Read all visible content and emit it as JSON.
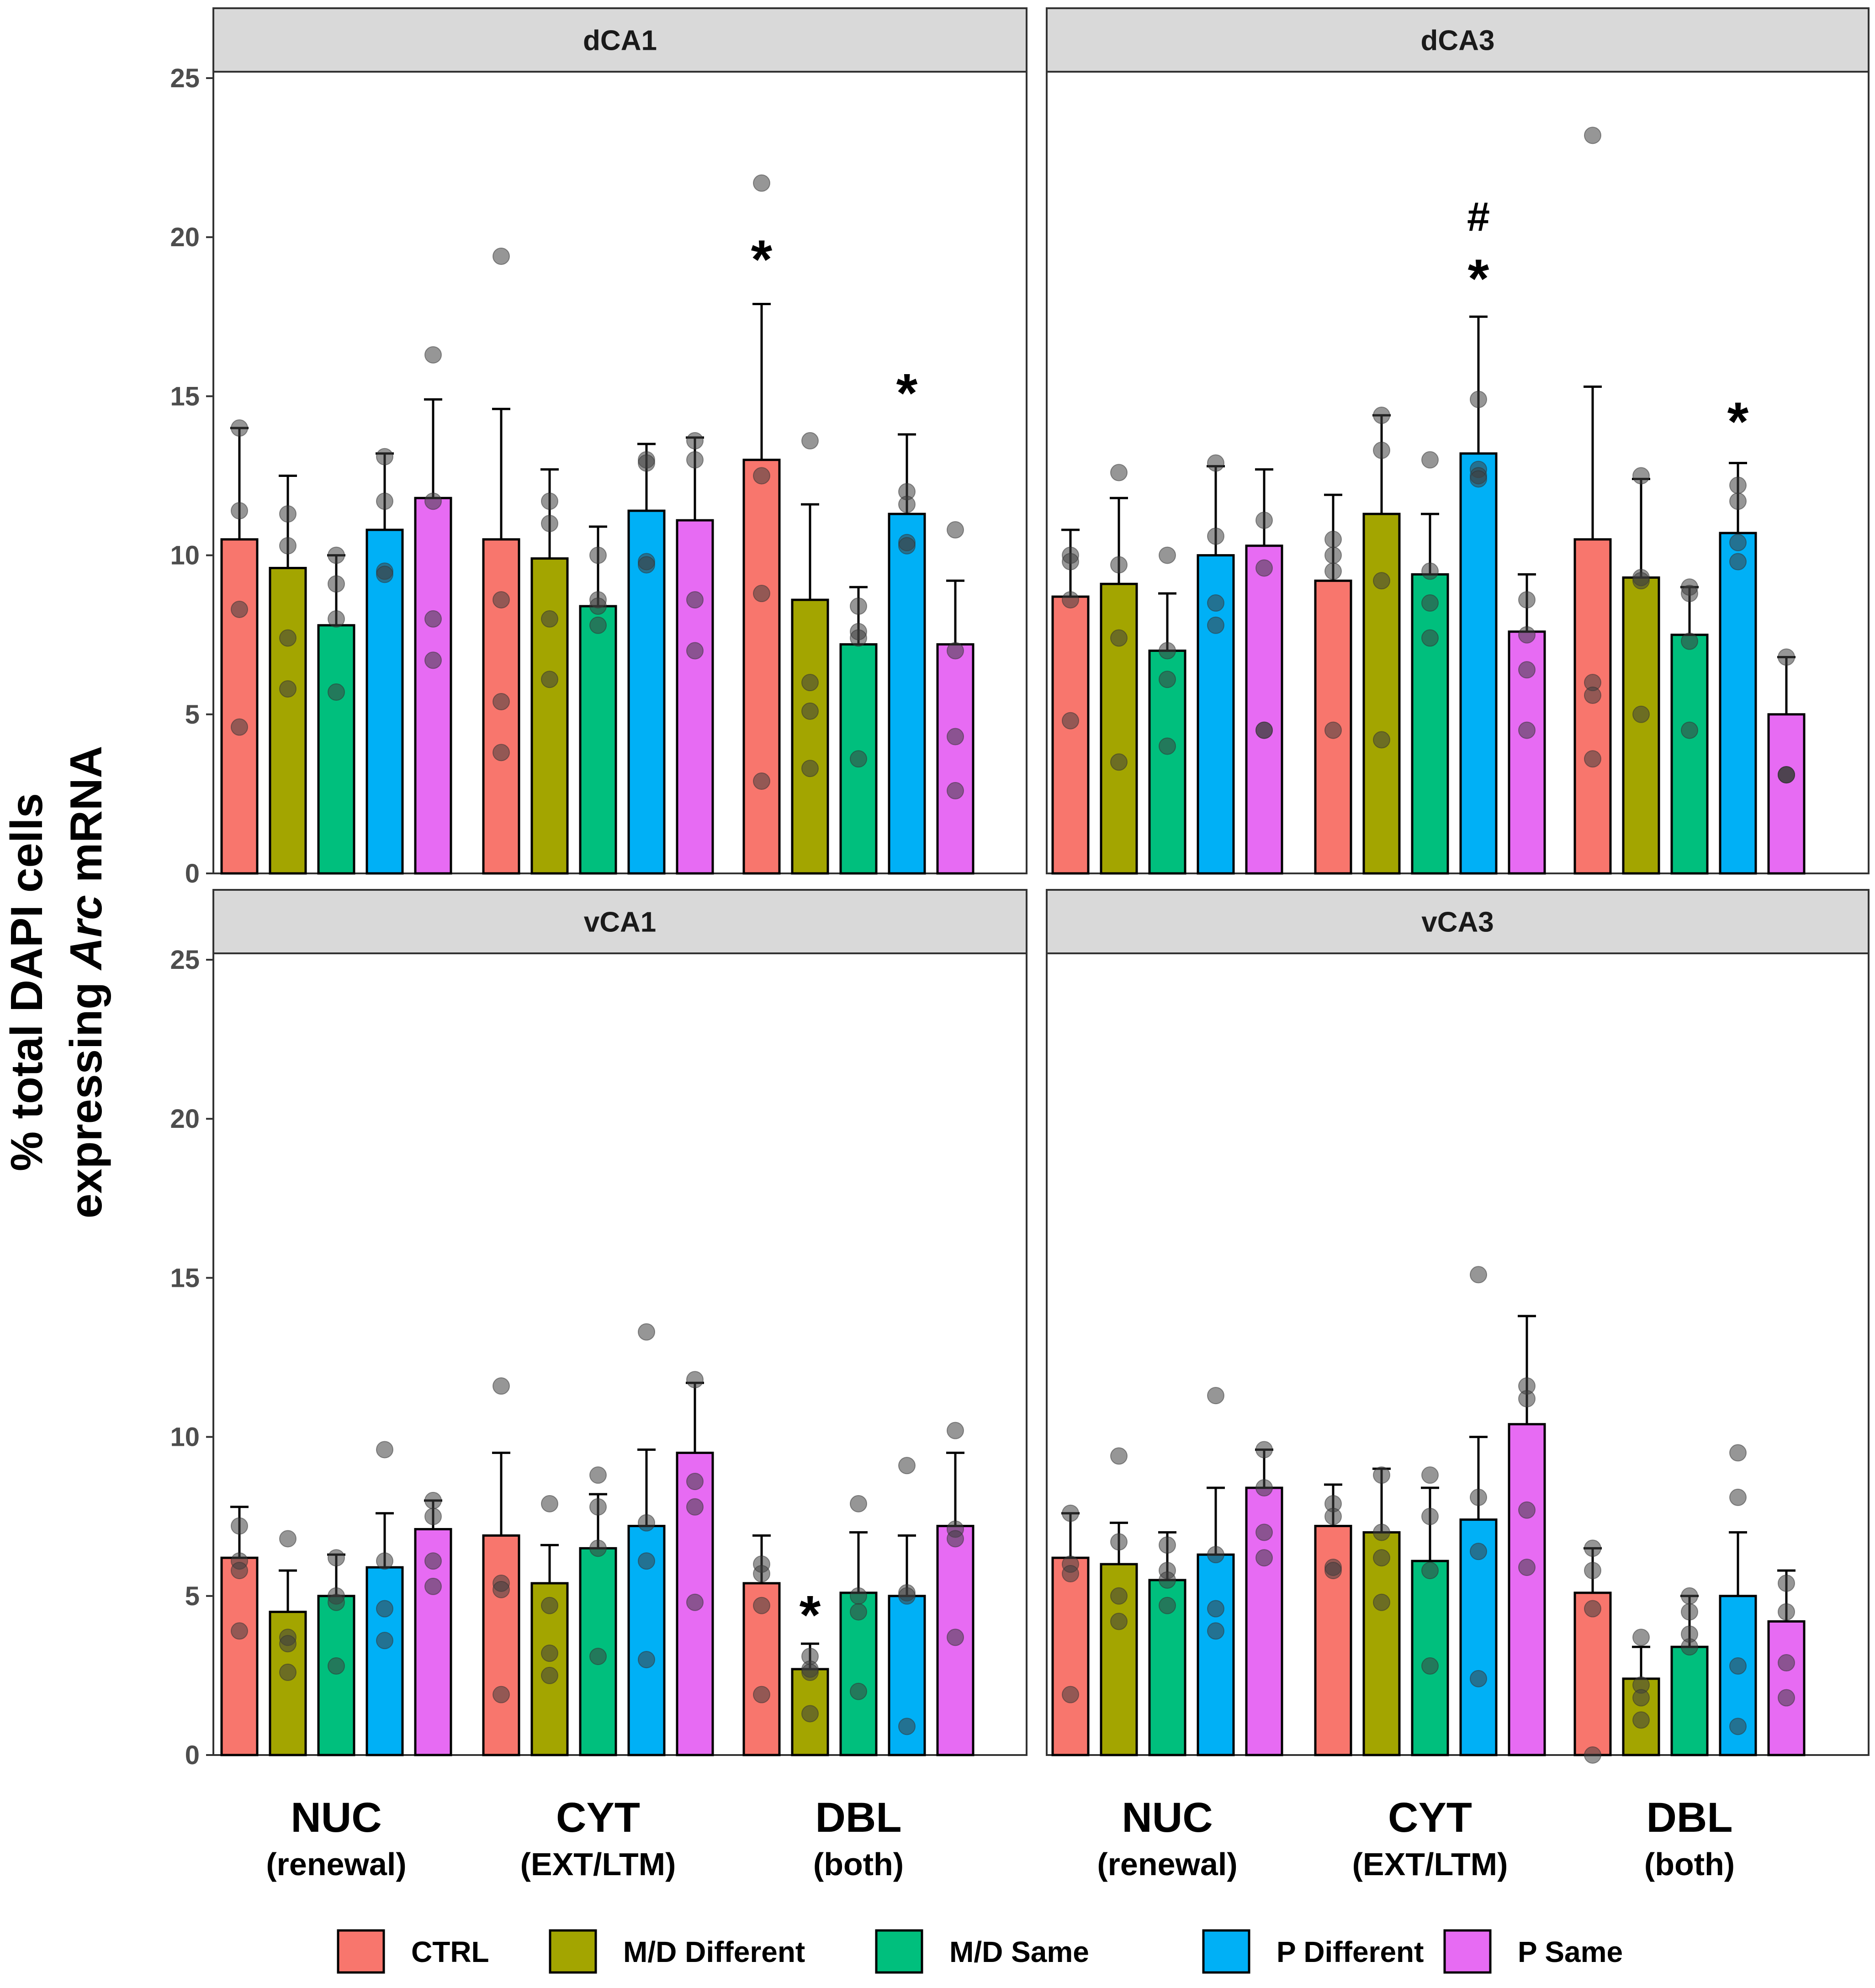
{
  "chart_data": {
    "type": "bar",
    "ylabel_line1": "% total DAPI cells",
    "ylabel_line2_prefix": "expressing ",
    "ylabel_line2_italic": "Arc",
    "ylabel_line2_suffix": " mRNA",
    "ylim": [
      0,
      25
    ],
    "yticks": [
      "0",
      "5",
      "10",
      "15",
      "20",
      "25"
    ],
    "groups": [
      {
        "name": "NUC",
        "sub": "(renewal)"
      },
      {
        "name": "CYT",
        "sub": "(EXT/LTM)"
      },
      {
        "name": "DBL",
        "sub": "(both)"
      }
    ],
    "series": [
      {
        "name": "CTRL",
        "color": "#F8766D"
      },
      {
        "name": "M/D Different",
        "color": "#A3A500"
      },
      {
        "name": "M/D Same",
        "color": "#00BF7D"
      },
      {
        "name": "P Different",
        "color": "#00B0F6"
      },
      {
        "name": "P Same",
        "color": "#E76BF3"
      }
    ],
    "panels": [
      {
        "title": "dCA1",
        "means": [
          [
            10.5,
            9.6,
            7.8,
            10.8,
            11.8
          ],
          [
            10.5,
            9.9,
            8.4,
            11.4,
            11.1
          ],
          [
            13.0,
            8.6,
            7.2,
            11.3,
            7.2
          ]
        ],
        "errors": [
          [
            14.0,
            12.5,
            10.0,
            13.2,
            14.9
          ],
          [
            14.6,
            12.7,
            10.9,
            13.5,
            13.7
          ],
          [
            17.9,
            11.6,
            9.0,
            13.8,
            9.2
          ]
        ],
        "points": [
          [
            [
              14.0,
              11.4,
              8.3,
              4.6
            ],
            [
              11.3,
              10.3,
              7.4,
              5.8
            ],
            [
              10.0,
              9.1,
              8.0,
              5.7
            ],
            [
              13.1,
              11.7,
              9.5,
              9.4
            ],
            [
              16.3,
              11.7,
              8.0,
              6.7
            ]
          ],
          [
            [
              19.4,
              8.6,
              5.4,
              3.8
            ],
            [
              11.7,
              11.0,
              8.0,
              6.1
            ],
            [
              10.0,
              8.6,
              7.8,
              8.4
            ],
            [
              13.0,
              12.9,
              9.8,
              9.7
            ],
            [
              13.6,
              13.0,
              8.6,
              7.0
            ]
          ],
          [
            [
              21.7,
              12.5,
              8.8,
              2.9
            ],
            [
              13.6,
              6.0,
              5.1,
              3.3
            ],
            [
              8.4,
              7.6,
              7.4,
              3.6
            ],
            [
              12.0,
              11.6,
              10.4,
              10.3
            ],
            [
              10.8,
              7.0,
              4.3,
              2.6
            ]
          ]
        ],
        "annotations": [
          {
            "group": 2,
            "series": 0,
            "text": "*",
            "value": 19.5
          },
          {
            "group": 2,
            "series": 3,
            "text": "*",
            "value": 15.3
          }
        ]
      },
      {
        "title": "dCA3",
        "means": [
          [
            8.7,
            9.1,
            7.0,
            10.0,
            10.3
          ],
          [
            9.2,
            11.3,
            9.4,
            13.2,
            7.6
          ],
          [
            10.5,
            9.3,
            7.5,
            10.7,
            5.0
          ]
        ],
        "errors": [
          [
            10.8,
            11.8,
            8.8,
            12.8,
            12.7
          ],
          [
            11.9,
            14.4,
            11.3,
            17.5,
            9.4
          ],
          [
            15.3,
            12.4,
            9.0,
            12.9,
            6.8
          ]
        ],
        "points": [
          [
            [
              10.0,
              9.8,
              8.6,
              4.8
            ],
            [
              12.6,
              9.7,
              7.4,
              3.5
            ],
            [
              10.0,
              7.0,
              6.1,
              4.0
            ],
            [
              12.9,
              10.6,
              8.5,
              7.8
            ],
            [
              11.1,
              9.6,
              4.5,
              4.5
            ]
          ],
          [
            [
              10.5,
              10.0,
              9.5,
              4.5
            ],
            [
              14.4,
              13.3,
              9.2,
              4.2
            ],
            [
              13.0,
              9.5,
              8.5,
              7.4
            ],
            [
              14.9,
              12.7,
              12.5,
              12.4
            ],
            [
              8.6,
              7.5,
              6.4,
              4.5
            ]
          ],
          [
            [
              23.2,
              6.0,
              5.6,
              3.6
            ],
            [
              12.5,
              9.3,
              9.2,
              5.0
            ],
            [
              9.0,
              8.8,
              7.3,
              4.5
            ],
            [
              12.2,
              11.7,
              10.4,
              9.8
            ],
            [
              6.8,
              3.1,
              3.1,
              3.1
            ]
          ]
        ],
        "annotations": [
          {
            "group": 1,
            "series": 3,
            "text": "#",
            "value": 20.6
          },
          {
            "group": 1,
            "series": 3,
            "text": "*",
            "value": 18.9
          },
          {
            "group": 2,
            "series": 3,
            "text": "*",
            "value": 14.4
          }
        ]
      },
      {
        "title": "vCA1",
        "means": [
          [
            6.2,
            4.5,
            5.0,
            5.9,
            7.1
          ],
          [
            6.9,
            5.4,
            6.5,
            7.2,
            9.5
          ],
          [
            5.4,
            2.7,
            5.1,
            5.0,
            7.2
          ]
        ],
        "errors": [
          [
            7.8,
            5.8,
            6.3,
            7.6,
            8.0
          ],
          [
            9.5,
            6.6,
            8.2,
            9.6,
            11.7
          ],
          [
            6.9,
            3.5,
            7.0,
            6.9,
            9.5
          ]
        ],
        "points": [
          [
            [
              7.2,
              6.1,
              5.8,
              3.9
            ],
            [
              6.8,
              3.7,
              3.5,
              2.6
            ],
            [
              6.2,
              5.0,
              4.8,
              2.8
            ],
            [
              9.6,
              6.1,
              4.6,
              3.6
            ],
            [
              8.0,
              7.5,
              6.1,
              5.3
            ]
          ],
          [
            [
              11.6,
              5.4,
              5.2,
              1.9
            ],
            [
              7.9,
              4.7,
              3.2,
              2.5
            ],
            [
              8.8,
              7.8,
              6.5,
              3.1
            ],
            [
              13.3,
              7.3,
              6.1,
              3.0
            ],
            [
              11.8,
              8.6,
              7.8,
              4.8
            ]
          ],
          [
            [
              6.0,
              5.7,
              4.7,
              1.9
            ],
            [
              3.1,
              2.7,
              2.6,
              1.3
            ],
            [
              7.9,
              5.0,
              4.5,
              2.0
            ],
            [
              9.1,
              5.1,
              5.0,
              0.9
            ],
            [
              10.2,
              7.1,
              6.8,
              3.7
            ]
          ]
        ],
        "annotations": [
          {
            "group": 2,
            "series": 1,
            "text": "*",
            "value": 4.6
          }
        ]
      },
      {
        "title": "vCA3",
        "means": [
          [
            6.2,
            6.0,
            5.5,
            6.3,
            8.4
          ],
          [
            7.2,
            7.0,
            6.1,
            7.4,
            10.4
          ],
          [
            5.1,
            2.4,
            3.4,
            5.0,
            4.2
          ]
        ],
        "errors": [
          [
            7.6,
            7.3,
            7.0,
            8.4,
            9.6
          ],
          [
            8.5,
            9.0,
            8.4,
            10.0,
            13.8
          ],
          [
            6.5,
            3.4,
            5.0,
            7.0,
            5.8
          ]
        ],
        "points": [
          [
            [
              7.6,
              6.0,
              5.7,
              1.9
            ],
            [
              9.4,
              6.7,
              5.0,
              4.2
            ],
            [
              6.6,
              5.8,
              5.5,
              4.7
            ],
            [
              11.3,
              6.3,
              4.6,
              3.9
            ],
            [
              9.6,
              8.4,
              7.0,
              6.2
            ]
          ],
          [
            [
              7.9,
              7.5,
              5.9,
              5.8
            ],
            [
              8.8,
              7.0,
              6.2,
              4.8
            ],
            [
              8.8,
              7.5,
              5.8,
              2.8
            ],
            [
              15.1,
              8.1,
              6.4,
              2.4
            ],
            [
              11.6,
              11.2,
              7.7,
              5.9
            ]
          ],
          [
            [
              6.5,
              5.8,
              4.6,
              0.0
            ],
            [
              3.7,
              2.2,
              1.8,
              1.1
            ],
            [
              5.0,
              4.5,
              3.8,
              3.4
            ],
            [
              9.5,
              8.1,
              2.8,
              0.9
            ],
            [
              5.4,
              4.5,
              2.9,
              1.8
            ]
          ]
        ],
        "annotations": []
      }
    ]
  }
}
